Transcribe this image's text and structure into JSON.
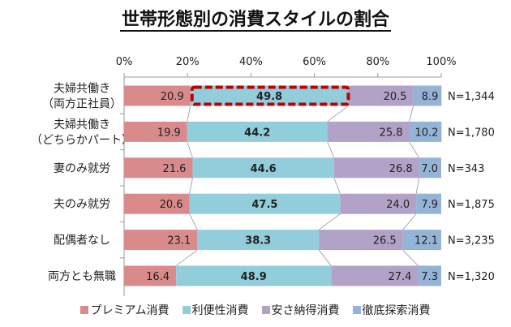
{
  "chart_data": {
    "type": "bar",
    "orientation": "horizontal",
    "stacked": true,
    "title": "世帯形態別の消費スタイルの割合",
    "categories": [
      "夫婦共働き\n（両方正社員）",
      "夫婦共働き\n（どちらかパート）",
      "妻のみ就労",
      "夫のみ就労",
      "配偶者なし",
      "両方とも無職"
    ],
    "sample_sizes": [
      "N=1,344",
      "N=1,780",
      "N=343",
      "N=1,875",
      "N=3,235",
      "N=1,320"
    ],
    "series": [
      {
        "name": "プレミアム消費",
        "color": "#d98b8b",
        "values": [
          20.9,
          19.9,
          21.6,
          20.6,
          23.1,
          16.4
        ]
      },
      {
        "name": "利便性消費",
        "color": "#92cddc",
        "values": [
          49.8,
          44.2,
          44.6,
          47.5,
          38.3,
          48.9
        ]
      },
      {
        "name": "安さ納得消費",
        "color": "#b3a2c7",
        "values": [
          20.5,
          25.8,
          26.8,
          24.0,
          26.5,
          27.4
        ]
      },
      {
        "name": "徹底探索消費",
        "color": "#95b3d7",
        "values": [
          8.9,
          10.2,
          7.0,
          7.9,
          12.1,
          7.3
        ]
      }
    ],
    "xlim": [
      0,
      100
    ],
    "xticks": [
      "0%",
      "20%",
      "40%",
      "60%",
      "80%",
      "100%"
    ],
    "xaxis_position": "top",
    "legend_position": "bottom",
    "grid": false,
    "highlight": {
      "category_index": 0,
      "series_index": 1,
      "style": "red dashed box",
      "color": "#c00000"
    }
  }
}
